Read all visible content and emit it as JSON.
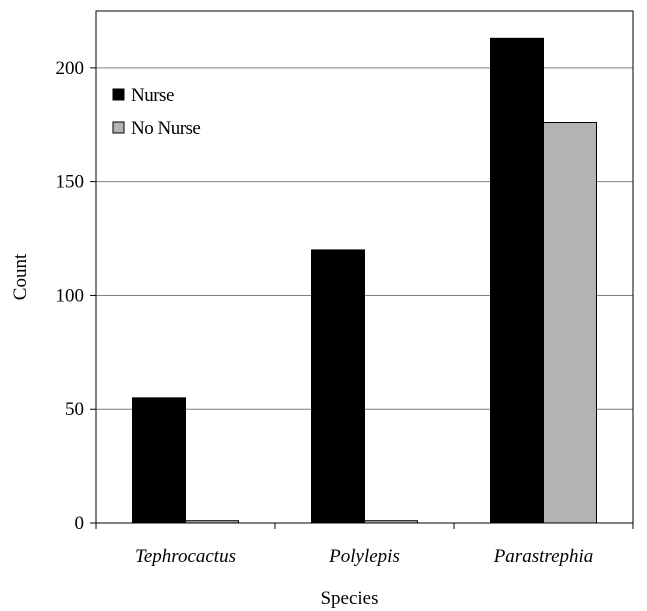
{
  "chart_data": {
    "type": "bar",
    "categories": [
      "Tephrocactus",
      "Polylepis",
      "Parastrephia"
    ],
    "series": [
      {
        "name": "Nurse",
        "values": [
          55,
          120,
          213
        ],
        "color": "#000000"
      },
      {
        "name": "No Nurse",
        "values": [
          1,
          1,
          176
        ],
        "color": "#b3b3b3"
      }
    ],
    "xlabel": "Species",
    "ylabel": "Count",
    "ylim": [
      0,
      225
    ],
    "yticks": [
      0,
      50,
      100,
      150,
      200
    ],
    "grid": "horizontal",
    "legend_position": "top-left"
  }
}
